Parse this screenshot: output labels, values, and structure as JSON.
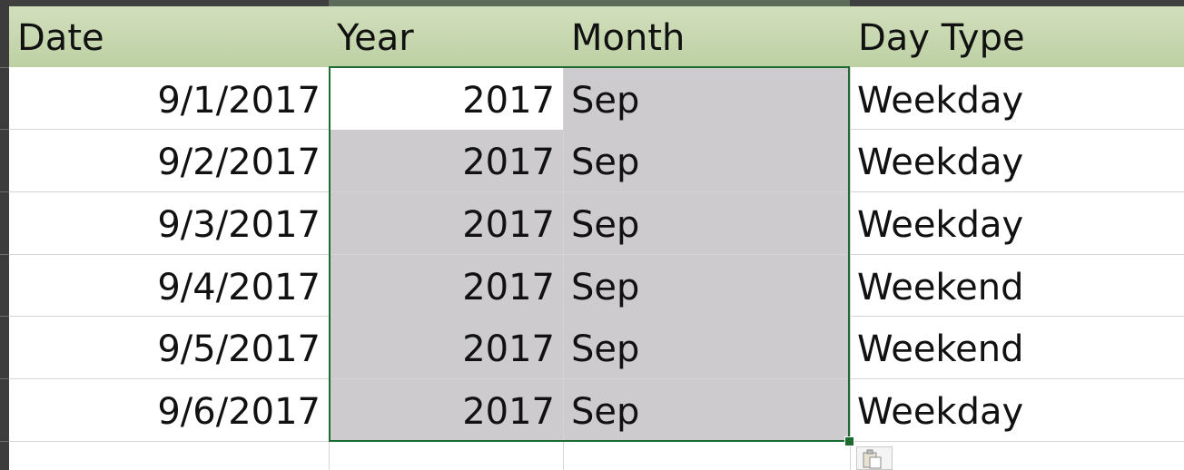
{
  "headers": {
    "date": "Date",
    "year": "Year",
    "month": "Month",
    "day_type": "Day Type"
  },
  "rows": [
    {
      "date": "9/1/2017",
      "year": "2017",
      "month": "Sep",
      "day_type": "Weekday"
    },
    {
      "date": "9/2/2017",
      "year": "2017",
      "month": "Sep",
      "day_type": "Weekday"
    },
    {
      "date": "9/3/2017",
      "year": "2017",
      "month": "Sep",
      "day_type": "Weekday"
    },
    {
      "date": "9/4/2017",
      "year": "2017",
      "month": "Sep",
      "day_type": "Weekend"
    },
    {
      "date": "9/5/2017",
      "year": "2017",
      "month": "Sep",
      "day_type": "Weekend"
    },
    {
      "date": "9/6/2017",
      "year": "2017",
      "month": "Sep",
      "day_type": "Weekday"
    }
  ],
  "colors": {
    "header_fill": "#c4d6ab",
    "selection_fill": "#cdcbce",
    "selection_border": "#1e6b32"
  },
  "icons": {
    "paste_options": "paste-options-icon"
  }
}
